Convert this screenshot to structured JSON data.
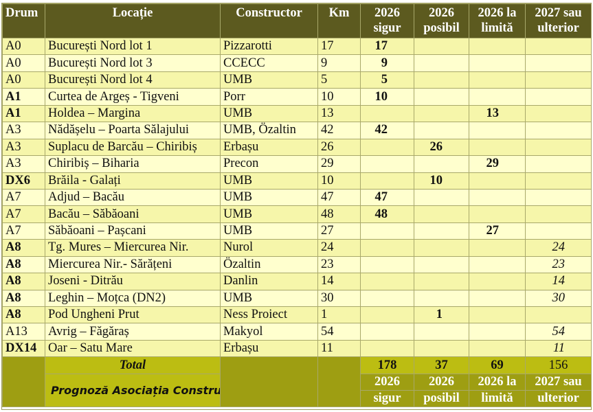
{
  "headers": {
    "drum": "Drum",
    "locatie": "Locație",
    "constructor": "Constructor",
    "km": "Km",
    "sigur": [
      "2026",
      "sigur"
    ],
    "posibil": [
      "2026",
      "posibil"
    ],
    "limita": [
      "2026 la",
      "limită"
    ],
    "ulterior": [
      "2027 sau",
      "ulterior"
    ]
  },
  "rows": [
    {
      "drum": "A0",
      "drum_bold": false,
      "locatie": "București Nord lot 1",
      "constructor": "Pizzarotti",
      "km": "17",
      "sigur": "17",
      "posibil": "",
      "limita": "",
      "ulterior": ""
    },
    {
      "drum": "A0",
      "drum_bold": false,
      "locatie": "București Nord lot 3",
      "constructor": "CCECC",
      "km": "9",
      "sigur": "9",
      "posibil": "",
      "limita": "",
      "ulterior": ""
    },
    {
      "drum": "A0",
      "drum_bold": false,
      "locatie": "București Nord lot 4",
      "constructor": "UMB",
      "km": "5",
      "sigur": "5",
      "posibil": "",
      "limita": "",
      "ulterior": ""
    },
    {
      "drum": "A1",
      "drum_bold": true,
      "locatie": "Curtea de Argeș - Tigveni",
      "constructor": "Porr",
      "km": "10",
      "sigur": "10",
      "posibil": "",
      "limita": "",
      "ulterior": ""
    },
    {
      "drum": "A1",
      "drum_bold": true,
      "locatie": "Holdea – Margina",
      "constructor": "UMB",
      "km": "13",
      "sigur": "",
      "posibil": "",
      "limita": "13",
      "ulterior": ""
    },
    {
      "drum": "A3",
      "drum_bold": false,
      "locatie": "Nădășelu – Poarta Sălajului",
      "constructor": "UMB, Özaltin",
      "km": "42",
      "sigur": "42",
      "posibil": "",
      "limita": "",
      "ulterior": ""
    },
    {
      "drum": "A3",
      "drum_bold": false,
      "locatie": "Suplacu de Barcău – Chiribiș",
      "constructor": "Erbașu",
      "km": "26",
      "sigur": "",
      "posibil": "26",
      "limita": "",
      "ulterior": ""
    },
    {
      "drum": "A3",
      "drum_bold": false,
      "locatie": "Chiribiș – Biharia",
      "constructor": "Precon",
      "km": "29",
      "sigur": "",
      "posibil": "",
      "limita": "29",
      "ulterior": ""
    },
    {
      "drum": "DX6",
      "drum_bold": true,
      "locatie": "Brăila - Galați",
      "constructor": "UMB",
      "km": "10",
      "sigur": "",
      "posibil": "10",
      "limita": "",
      "ulterior": ""
    },
    {
      "drum": "A7",
      "drum_bold": false,
      "locatie": "Adjud – Bacău",
      "constructor": "UMB",
      "km": "47",
      "sigur": "47",
      "posibil": "",
      "limita": "",
      "ulterior": ""
    },
    {
      "drum": "A7",
      "drum_bold": false,
      "locatie": "Bacău – Săbăoani",
      "constructor": "UMB",
      "km": "48",
      "sigur": "48",
      "posibil": "",
      "limita": "",
      "ulterior": ""
    },
    {
      "drum": "A7",
      "drum_bold": false,
      "locatie": "Săbăoani – Pașcani",
      "constructor": "UMB",
      "km": "27",
      "sigur": "",
      "posibil": "",
      "limita": "27",
      "ulterior": ""
    },
    {
      "drum": "A8",
      "drum_bold": true,
      "locatie": "Tg. Mures – Miercurea Nir.",
      "constructor": "Nurol",
      "km": "24",
      "sigur": "",
      "posibil": "",
      "limita": "",
      "ulterior": "24"
    },
    {
      "drum": "A8",
      "drum_bold": true,
      "locatie": "Miercurea Nir.- Sărățeni",
      "constructor": "Özaltin",
      "km": "23",
      "sigur": "",
      "posibil": "",
      "limita": "",
      "ulterior": "23"
    },
    {
      "drum": "A8",
      "drum_bold": true,
      "locatie": "Joseni - Ditrău",
      "constructor": "Danlin",
      "km": "14",
      "sigur": "",
      "posibil": "",
      "limita": "",
      "ulterior": "14"
    },
    {
      "drum": "A8",
      "drum_bold": true,
      "locatie": "Leghin – Moțca (DN2)",
      "constructor": "UMB",
      "km": "30",
      "sigur": "",
      "posibil": "",
      "limita": "",
      "ulterior": "30"
    },
    {
      "drum": "A8",
      "drum_bold": true,
      "locatie": "Pod Ungheni Prut",
      "constructor": "Ness Proiect",
      "km": "1",
      "sigur": "",
      "posibil": "1",
      "limita": "",
      "ulterior": ""
    },
    {
      "drum": "A13",
      "drum_bold": false,
      "locatie": "Avrig – Făgăraș",
      "constructor": "Makyol",
      "km": "54",
      "sigur": "",
      "posibil": "",
      "limita": "",
      "ulterior": "54"
    },
    {
      "drum": "DX14",
      "drum_bold": true,
      "locatie": "Oar – Satu Mare",
      "constructor": "Erbașu",
      "km": "11",
      "sigur": "",
      "posibil": "",
      "limita": "",
      "ulterior": "11"
    }
  ],
  "footer": {
    "total_label": "Total",
    "prognoza": "Prognoză Asociația Construim România",
    "sigur": "178",
    "posibil": "37",
    "limita": "69",
    "ulterior": "156",
    "sub_sigur": [
      "2026",
      "sigur"
    ],
    "sub_posibil": [
      "2026",
      "posibil"
    ],
    "sub_limita": [
      "2026 la",
      "limită"
    ],
    "sub_ulterior": [
      "2027 sau",
      "ulterior"
    ]
  },
  "colors": {
    "header_bg": "#5c5a1f",
    "row_odd": "#f6f6aa",
    "row_even": "#ffffce",
    "footer_bg": "#bcbd12",
    "footer_dark": "#9e9e12"
  }
}
